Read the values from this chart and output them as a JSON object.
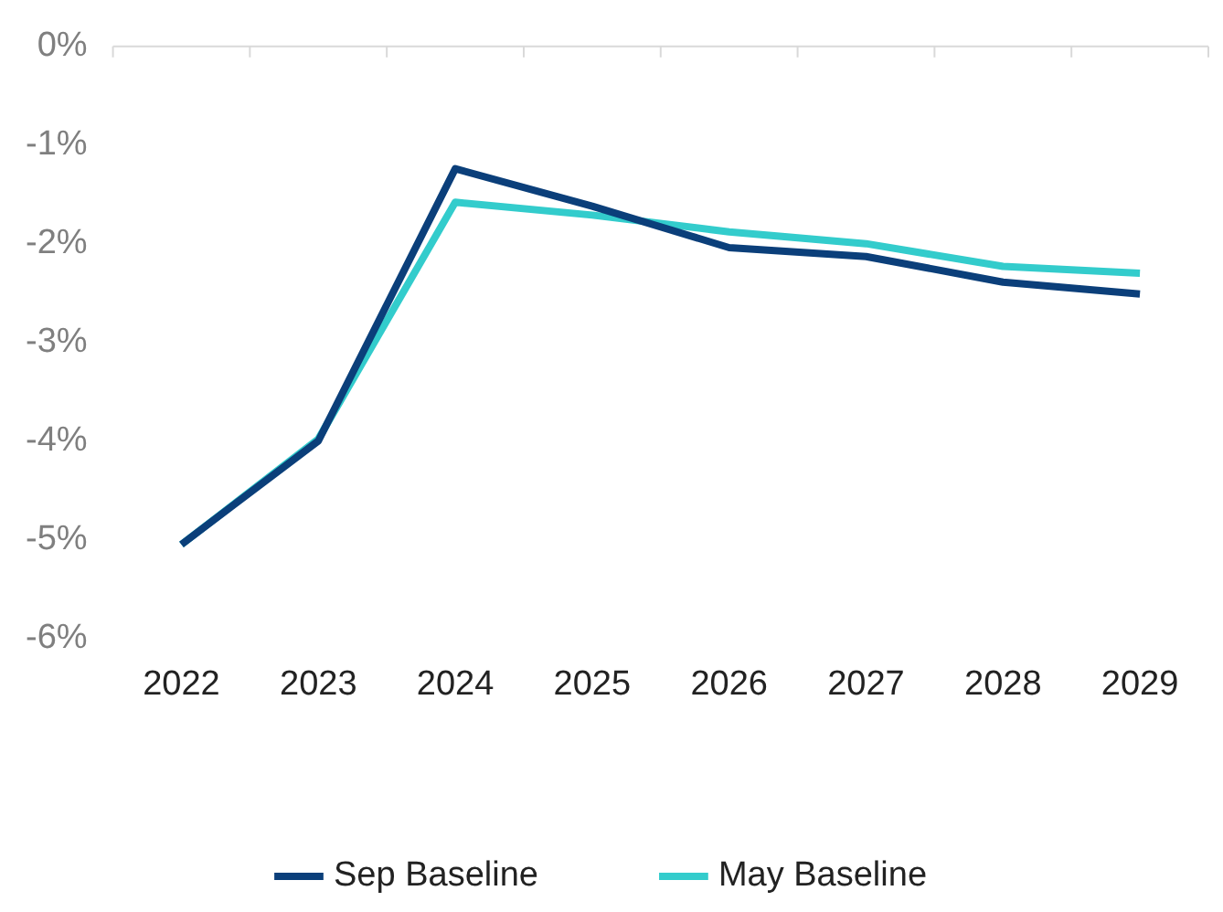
{
  "chart_data": {
    "type": "line",
    "categories": [
      "2022",
      "2023",
      "2024",
      "2025",
      "2026",
      "2027",
      "2028",
      "2029"
    ],
    "series": [
      {
        "name": "Sep Baseline",
        "color": "#0b3f7a",
        "values": [
          -5.05,
          -4.0,
          -1.24,
          -1.62,
          -2.04,
          -2.13,
          -2.39,
          -2.51
        ]
      },
      {
        "name": "May Baseline",
        "color": "#33cccc",
        "values": [
          -5.05,
          -3.98,
          -1.58,
          -1.71,
          -1.88,
          -2.0,
          -2.23,
          -2.3
        ]
      }
    ],
    "ylim": [
      -6,
      0
    ],
    "yticks": [
      {
        "value": 0,
        "label": "0%"
      },
      {
        "value": -1,
        "label": "-1%"
      },
      {
        "value": -2,
        "label": "-2%"
      },
      {
        "value": -3,
        "label": "-3%"
      },
      {
        "value": -4,
        "label": "-4%"
      },
      {
        "value": -5,
        "label": "-5%"
      },
      {
        "value": -6,
        "label": "-6%"
      }
    ],
    "grid": false,
    "legend": "bottom",
    "marker": "none",
    "line_style": "solid"
  }
}
